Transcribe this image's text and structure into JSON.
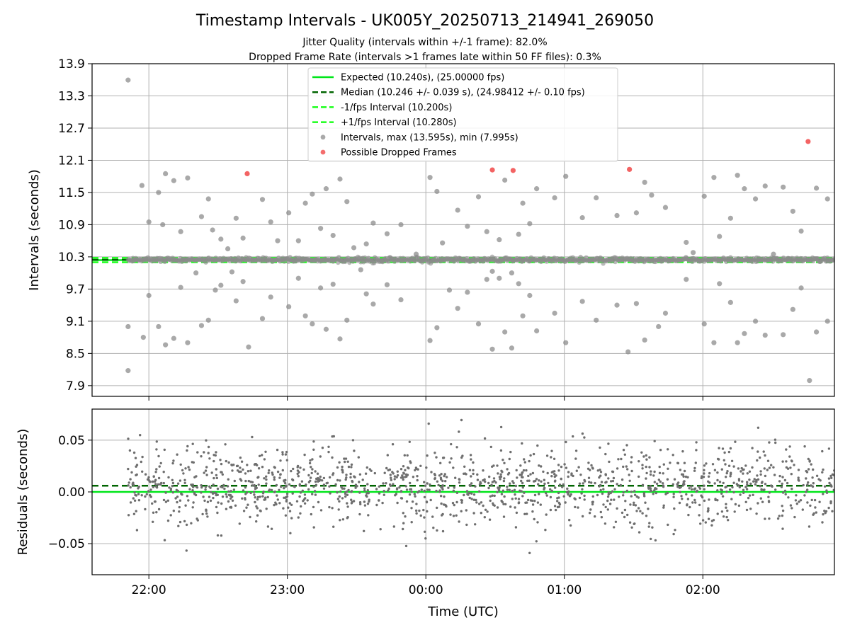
{
  "chart_data": [
    {
      "type": "scatter",
      "title": "Timestamp Intervals - UK005Y_20250713_214941_269050",
      "subtitle_lines": [
        "Jitter Quality (intervals within +/-1 frame): 82.0%",
        "Dropped Frame Rate (intervals >1 frames late within 50 FF files): 0.3%"
      ],
      "ylabel": "Intervals (seconds)",
      "xlabel": "",
      "ylim": [
        7.7,
        13.9
      ],
      "yticks": [
        "13.9",
        "13.3",
        "12.7",
        "12.1",
        "11.5",
        "10.9",
        "10.3",
        "9.7",
        "9.1",
        "8.5",
        "7.9"
      ],
      "xlim": [
        -0.41,
        4.95
      ],
      "x_units": "hours after 22:00 UTC",
      "grid": true,
      "legend_position": "top-center",
      "legend": [
        {
          "label": "Expected (10.240s), (25.00000 fps)",
          "kind": "solid-line",
          "color": "#00e61a"
        },
        {
          "label": "Median (10.246 +/- 0.039 s), (24.98412 +/- 0.10 fps)",
          "kind": "dashed-line",
          "color": "#006400"
        },
        {
          "label": "-1/fps Interval (10.200s)",
          "kind": "dashed-line",
          "color": "#1aff1a"
        },
        {
          "label": "+1/fps Interval (10.280s)",
          "kind": "dashed-line",
          "color": "#1aff1a"
        },
        {
          "label": "Intervals, max (13.595s), min (7.995s)",
          "kind": "marker",
          "color": "#8c8c8c"
        },
        {
          "label": "Possible Dropped Frames",
          "kind": "marker",
          "color": "#f03c3c"
        }
      ],
      "reference_lines": {
        "expected": 10.24,
        "median": 10.246,
        "minus_one_frame": 10.2,
        "plus_one_frame": 10.28
      },
      "scatter_seed": 20250713,
      "outliers": [
        {
          "x": -0.15,
          "y": 13.595
        },
        {
          "x": -0.15,
          "y": 8.18
        },
        {
          "x": -0.15,
          "y": 9.0
        },
        {
          "x": -0.05,
          "y": 11.63
        },
        {
          "x": -0.04,
          "y": 8.8
        },
        {
          "x": 0.0,
          "y": 10.95
        },
        {
          "x": 0.0,
          "y": 9.58
        },
        {
          "x": 0.07,
          "y": 11.5
        },
        {
          "x": 0.07,
          "y": 9.0
        },
        {
          "x": 0.1,
          "y": 10.9
        },
        {
          "x": 0.12,
          "y": 11.85
        },
        {
          "x": 0.12,
          "y": 8.66
        },
        {
          "x": 0.18,
          "y": 11.72
        },
        {
          "x": 0.18,
          "y": 8.78
        },
        {
          "x": 0.23,
          "y": 10.77
        },
        {
          "x": 0.23,
          "y": 9.73
        },
        {
          "x": 0.28,
          "y": 11.77
        },
        {
          "x": 0.28,
          "y": 8.7
        },
        {
          "x": 0.34,
          "y": 10.0
        },
        {
          "x": 0.38,
          "y": 11.05
        },
        {
          "x": 0.38,
          "y": 9.02
        },
        {
          "x": 0.43,
          "y": 11.38
        },
        {
          "x": 0.43,
          "y": 9.12
        },
        {
          "x": 0.46,
          "y": 10.8
        },
        {
          "x": 0.48,
          "y": 9.68
        },
        {
          "x": 0.52,
          "y": 10.63
        },
        {
          "x": 0.52,
          "y": 9.77
        },
        {
          "x": 0.57,
          "y": 10.45
        },
        {
          "x": 0.6,
          "y": 10.02
        },
        {
          "x": 0.63,
          "y": 11.02
        },
        {
          "x": 0.63,
          "y": 9.48
        },
        {
          "x": 0.68,
          "y": 10.65
        },
        {
          "x": 0.68,
          "y": 9.84
        },
        {
          "x": 0.72,
          "y": 8.62
        },
        {
          "x": 0.82,
          "y": 11.37
        },
        {
          "x": 0.82,
          "y": 9.15
        },
        {
          "x": 0.88,
          "y": 10.95
        },
        {
          "x": 0.88,
          "y": 9.55
        },
        {
          "x": 0.93,
          "y": 10.6
        },
        {
          "x": 1.01,
          "y": 11.12
        },
        {
          "x": 1.01,
          "y": 9.37
        },
        {
          "x": 1.08,
          "y": 10.6
        },
        {
          "x": 1.08,
          "y": 9.9
        },
        {
          "x": 1.13,
          "y": 11.3
        },
        {
          "x": 1.13,
          "y": 9.2
        },
        {
          "x": 1.18,
          "y": 11.47
        },
        {
          "x": 1.18,
          "y": 9.05
        },
        {
          "x": 1.24,
          "y": 10.83
        },
        {
          "x": 1.24,
          "y": 9.72
        },
        {
          "x": 1.28,
          "y": 11.57
        },
        {
          "x": 1.28,
          "y": 8.95
        },
        {
          "x": 1.33,
          "y": 10.7
        },
        {
          "x": 1.33,
          "y": 9.79
        },
        {
          "x": 1.38,
          "y": 11.75
        },
        {
          "x": 1.38,
          "y": 8.77
        },
        {
          "x": 1.43,
          "y": 11.33
        },
        {
          "x": 1.43,
          "y": 9.12
        },
        {
          "x": 1.48,
          "y": 10.47
        },
        {
          "x": 1.53,
          "y": 10.06
        },
        {
          "x": 1.57,
          "y": 10.54
        },
        {
          "x": 1.57,
          "y": 9.61
        },
        {
          "x": 1.62,
          "y": 10.93
        },
        {
          "x": 1.62,
          "y": 9.42
        },
        {
          "x": 1.72,
          "y": 10.73
        },
        {
          "x": 1.72,
          "y": 9.78
        },
        {
          "x": 1.82,
          "y": 10.9
        },
        {
          "x": 1.82,
          "y": 9.5
        },
        {
          "x": 1.93,
          "y": 10.35
        },
        {
          "x": 2.03,
          "y": 8.74
        },
        {
          "x": 2.03,
          "y": 11.78
        },
        {
          "x": 2.08,
          "y": 11.52
        },
        {
          "x": 2.08,
          "y": 8.98
        },
        {
          "x": 2.12,
          "y": 10.56
        },
        {
          "x": 2.17,
          "y": 9.68
        },
        {
          "x": 2.23,
          "y": 11.17
        },
        {
          "x": 2.23,
          "y": 9.34
        },
        {
          "x": 2.3,
          "y": 10.87
        },
        {
          "x": 2.3,
          "y": 9.64
        },
        {
          "x": 2.38,
          "y": 11.42
        },
        {
          "x": 2.38,
          "y": 9.05
        },
        {
          "x": 2.44,
          "y": 10.77
        },
        {
          "x": 2.44,
          "y": 9.88
        },
        {
          "x": 2.48,
          "y": 10.03
        },
        {
          "x": 2.48,
          "y": 8.58
        },
        {
          "x": 2.53,
          "y": 10.62
        },
        {
          "x": 2.53,
          "y": 9.9
        },
        {
          "x": 2.57,
          "y": 11.73
        },
        {
          "x": 2.57,
          "y": 8.9
        },
        {
          "x": 2.62,
          "y": 10.0
        },
        {
          "x": 2.62,
          "y": 8.6
        },
        {
          "x": 2.67,
          "y": 10.72
        },
        {
          "x": 2.67,
          "y": 9.8
        },
        {
          "x": 2.7,
          "y": 11.3
        },
        {
          "x": 2.7,
          "y": 9.2
        },
        {
          "x": 2.75,
          "y": 10.92
        },
        {
          "x": 2.75,
          "y": 9.58
        },
        {
          "x": 2.8,
          "y": 11.57
        },
        {
          "x": 2.8,
          "y": 8.92
        },
        {
          "x": 2.93,
          "y": 11.4
        },
        {
          "x": 2.93,
          "y": 9.25
        },
        {
          "x": 3.01,
          "y": 11.8
        },
        {
          "x": 3.01,
          "y": 8.7
        },
        {
          "x": 3.13,
          "y": 11.03
        },
        {
          "x": 3.13,
          "y": 9.47
        },
        {
          "x": 3.23,
          "y": 11.4
        },
        {
          "x": 3.23,
          "y": 9.12
        },
        {
          "x": 3.38,
          "y": 11.07
        },
        {
          "x": 3.38,
          "y": 9.4
        },
        {
          "x": 3.46,
          "y": 8.53
        },
        {
          "x": 3.52,
          "y": 11.12
        },
        {
          "x": 3.52,
          "y": 9.43
        },
        {
          "x": 3.58,
          "y": 11.69
        },
        {
          "x": 3.58,
          "y": 8.75
        },
        {
          "x": 3.63,
          "y": 11.45
        },
        {
          "x": 3.68,
          "y": 9.0
        },
        {
          "x": 3.73,
          "y": 11.22
        },
        {
          "x": 3.73,
          "y": 9.25
        },
        {
          "x": 3.88,
          "y": 10.57
        },
        {
          "x": 3.88,
          "y": 9.88
        },
        {
          "x": 3.93,
          "y": 10.38
        },
        {
          "x": 4.01,
          "y": 11.43
        },
        {
          "x": 4.01,
          "y": 9.05
        },
        {
          "x": 4.08,
          "y": 11.78
        },
        {
          "x": 4.08,
          "y": 8.7
        },
        {
          "x": 4.12,
          "y": 10.68
        },
        {
          "x": 4.12,
          "y": 9.8
        },
        {
          "x": 4.2,
          "y": 11.02
        },
        {
          "x": 4.2,
          "y": 9.45
        },
        {
          "x": 4.25,
          "y": 11.82
        },
        {
          "x": 4.25,
          "y": 8.7
        },
        {
          "x": 4.3,
          "y": 11.57
        },
        {
          "x": 4.3,
          "y": 8.87
        },
        {
          "x": 4.38,
          "y": 11.38
        },
        {
          "x": 4.38,
          "y": 9.1
        },
        {
          "x": 4.45,
          "y": 11.62
        },
        {
          "x": 4.45,
          "y": 8.84
        },
        {
          "x": 4.51,
          "y": 10.35
        },
        {
          "x": 4.58,
          "y": 11.6
        },
        {
          "x": 4.58,
          "y": 8.85
        },
        {
          "x": 4.65,
          "y": 11.15
        },
        {
          "x": 4.65,
          "y": 9.32
        },
        {
          "x": 4.71,
          "y": 10.78
        },
        {
          "x": 4.71,
          "y": 9.72
        },
        {
          "x": 4.77,
          "y": 7.995
        },
        {
          "x": 4.82,
          "y": 11.58
        },
        {
          "x": 4.82,
          "y": 8.9
        },
        {
          "x": 4.9,
          "y": 11.38
        },
        {
          "x": 4.9,
          "y": 9.1
        }
      ],
      "dropped_frames": [
        {
          "x": 0.71,
          "y": 11.85
        },
        {
          "x": 2.48,
          "y": 11.92
        },
        {
          "x": 2.63,
          "y": 11.91
        },
        {
          "x": 3.47,
          "y": 11.93
        },
        {
          "x": 4.76,
          "y": 12.45
        }
      ]
    },
    {
      "type": "scatter",
      "xlabel": "Time (UTC)",
      "ylabel": "Residuals (seconds)",
      "ylim": [
        -0.08,
        0.08
      ],
      "yticks": [
        "0.05",
        "0.00",
        "−0.05"
      ],
      "ytick_values": [
        0.05,
        0.0,
        -0.05
      ],
      "xticks": [
        "22:00",
        "23:00",
        "00:00",
        "01:00",
        "02:00"
      ],
      "xtick_values": [
        0,
        1,
        2,
        3,
        4
      ],
      "reference_lines": {
        "zero": 0.0,
        "median_offset": 0.006
      },
      "point_count": 1500,
      "scatter_seed": 714,
      "grid": true
    }
  ]
}
